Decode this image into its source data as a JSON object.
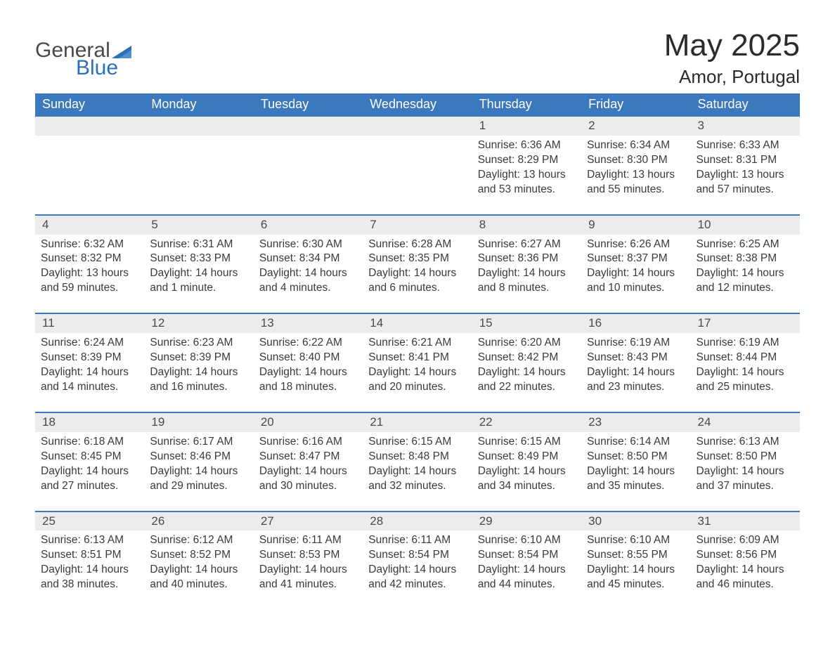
{
  "logo": {
    "word1": "General",
    "word2": "Blue"
  },
  "title": "May 2025",
  "location": "Amor, Portugal",
  "colors": {
    "header_bg": "#3b78bd",
    "header_text": "#ffffff",
    "daynum_bg": "#ececec",
    "daynum_border": "#3b78bd",
    "body_text": "#3a3a3a",
    "logo_accent": "#2a71b8",
    "logo_gray": "#4a4a4a"
  },
  "weekdays": [
    "Sunday",
    "Monday",
    "Tuesday",
    "Wednesday",
    "Thursday",
    "Friday",
    "Saturday"
  ],
  "weeks": [
    [
      null,
      null,
      null,
      null,
      {
        "day": "1",
        "sunrise": "Sunrise: 6:36 AM",
        "sunset": "Sunset: 8:29 PM",
        "daylight": "Daylight: 13 hours and 53 minutes."
      },
      {
        "day": "2",
        "sunrise": "Sunrise: 6:34 AM",
        "sunset": "Sunset: 8:30 PM",
        "daylight": "Daylight: 13 hours and 55 minutes."
      },
      {
        "day": "3",
        "sunrise": "Sunrise: 6:33 AM",
        "sunset": "Sunset: 8:31 PM",
        "daylight": "Daylight: 13 hours and 57 minutes."
      }
    ],
    [
      {
        "day": "4",
        "sunrise": "Sunrise: 6:32 AM",
        "sunset": "Sunset: 8:32 PM",
        "daylight": "Daylight: 13 hours and 59 minutes."
      },
      {
        "day": "5",
        "sunrise": "Sunrise: 6:31 AM",
        "sunset": "Sunset: 8:33 PM",
        "daylight": "Daylight: 14 hours and 1 minute."
      },
      {
        "day": "6",
        "sunrise": "Sunrise: 6:30 AM",
        "sunset": "Sunset: 8:34 PM",
        "daylight": "Daylight: 14 hours and 4 minutes."
      },
      {
        "day": "7",
        "sunrise": "Sunrise: 6:28 AM",
        "sunset": "Sunset: 8:35 PM",
        "daylight": "Daylight: 14 hours and 6 minutes."
      },
      {
        "day": "8",
        "sunrise": "Sunrise: 6:27 AM",
        "sunset": "Sunset: 8:36 PM",
        "daylight": "Daylight: 14 hours and 8 minutes."
      },
      {
        "day": "9",
        "sunrise": "Sunrise: 6:26 AM",
        "sunset": "Sunset: 8:37 PM",
        "daylight": "Daylight: 14 hours and 10 minutes."
      },
      {
        "day": "10",
        "sunrise": "Sunrise: 6:25 AM",
        "sunset": "Sunset: 8:38 PM",
        "daylight": "Daylight: 14 hours and 12 minutes."
      }
    ],
    [
      {
        "day": "11",
        "sunrise": "Sunrise: 6:24 AM",
        "sunset": "Sunset: 8:39 PM",
        "daylight": "Daylight: 14 hours and 14 minutes."
      },
      {
        "day": "12",
        "sunrise": "Sunrise: 6:23 AM",
        "sunset": "Sunset: 8:39 PM",
        "daylight": "Daylight: 14 hours and 16 minutes."
      },
      {
        "day": "13",
        "sunrise": "Sunrise: 6:22 AM",
        "sunset": "Sunset: 8:40 PM",
        "daylight": "Daylight: 14 hours and 18 minutes."
      },
      {
        "day": "14",
        "sunrise": "Sunrise: 6:21 AM",
        "sunset": "Sunset: 8:41 PM",
        "daylight": "Daylight: 14 hours and 20 minutes."
      },
      {
        "day": "15",
        "sunrise": "Sunrise: 6:20 AM",
        "sunset": "Sunset: 8:42 PM",
        "daylight": "Daylight: 14 hours and 22 minutes."
      },
      {
        "day": "16",
        "sunrise": "Sunrise: 6:19 AM",
        "sunset": "Sunset: 8:43 PM",
        "daylight": "Daylight: 14 hours and 23 minutes."
      },
      {
        "day": "17",
        "sunrise": "Sunrise: 6:19 AM",
        "sunset": "Sunset: 8:44 PM",
        "daylight": "Daylight: 14 hours and 25 minutes."
      }
    ],
    [
      {
        "day": "18",
        "sunrise": "Sunrise: 6:18 AM",
        "sunset": "Sunset: 8:45 PM",
        "daylight": "Daylight: 14 hours and 27 minutes."
      },
      {
        "day": "19",
        "sunrise": "Sunrise: 6:17 AM",
        "sunset": "Sunset: 8:46 PM",
        "daylight": "Daylight: 14 hours and 29 minutes."
      },
      {
        "day": "20",
        "sunrise": "Sunrise: 6:16 AM",
        "sunset": "Sunset: 8:47 PM",
        "daylight": "Daylight: 14 hours and 30 minutes."
      },
      {
        "day": "21",
        "sunrise": "Sunrise: 6:15 AM",
        "sunset": "Sunset: 8:48 PM",
        "daylight": "Daylight: 14 hours and 32 minutes."
      },
      {
        "day": "22",
        "sunrise": "Sunrise: 6:15 AM",
        "sunset": "Sunset: 8:49 PM",
        "daylight": "Daylight: 14 hours and 34 minutes."
      },
      {
        "day": "23",
        "sunrise": "Sunrise: 6:14 AM",
        "sunset": "Sunset: 8:50 PM",
        "daylight": "Daylight: 14 hours and 35 minutes."
      },
      {
        "day": "24",
        "sunrise": "Sunrise: 6:13 AM",
        "sunset": "Sunset: 8:50 PM",
        "daylight": "Daylight: 14 hours and 37 minutes."
      }
    ],
    [
      {
        "day": "25",
        "sunrise": "Sunrise: 6:13 AM",
        "sunset": "Sunset: 8:51 PM",
        "daylight": "Daylight: 14 hours and 38 minutes."
      },
      {
        "day": "26",
        "sunrise": "Sunrise: 6:12 AM",
        "sunset": "Sunset: 8:52 PM",
        "daylight": "Daylight: 14 hours and 40 minutes."
      },
      {
        "day": "27",
        "sunrise": "Sunrise: 6:11 AM",
        "sunset": "Sunset: 8:53 PM",
        "daylight": "Daylight: 14 hours and 41 minutes."
      },
      {
        "day": "28",
        "sunrise": "Sunrise: 6:11 AM",
        "sunset": "Sunset: 8:54 PM",
        "daylight": "Daylight: 14 hours and 42 minutes."
      },
      {
        "day": "29",
        "sunrise": "Sunrise: 6:10 AM",
        "sunset": "Sunset: 8:54 PM",
        "daylight": "Daylight: 14 hours and 44 minutes."
      },
      {
        "day": "30",
        "sunrise": "Sunrise: 6:10 AM",
        "sunset": "Sunset: 8:55 PM",
        "daylight": "Daylight: 14 hours and 45 minutes."
      },
      {
        "day": "31",
        "sunrise": "Sunrise: 6:09 AM",
        "sunset": "Sunset: 8:56 PM",
        "daylight": "Daylight: 14 hours and 46 minutes."
      }
    ]
  ]
}
